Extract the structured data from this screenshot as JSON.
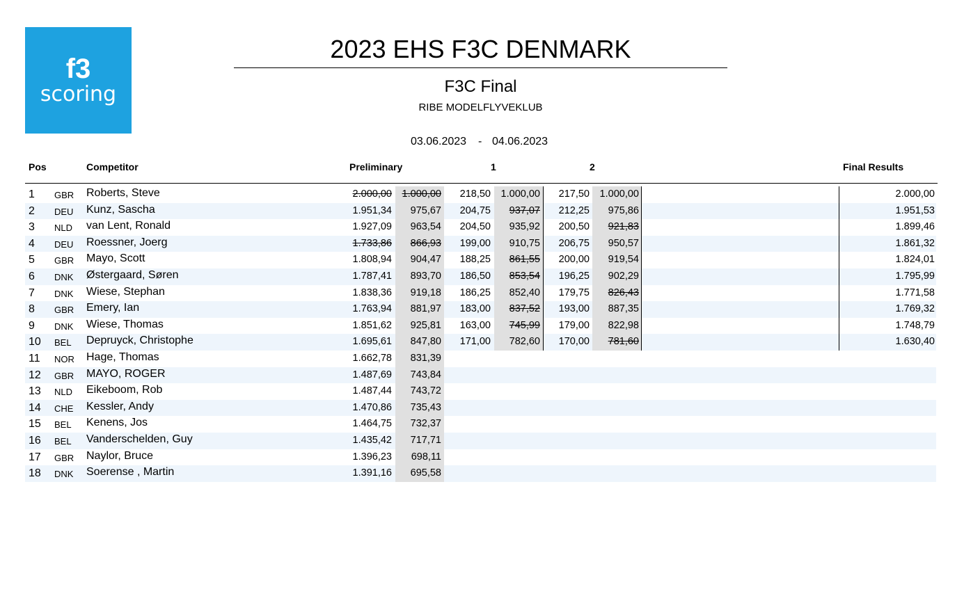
{
  "logo": {
    "top": "f3",
    "bottom": "scoring"
  },
  "header": {
    "title": "2023 EHS F3C DENMARK",
    "subtitle": "F3C Final",
    "club": "RIBE MODELFLYVEKLUB",
    "date_from": "03.06.2023",
    "date_sep": "-",
    "date_to": "04.06.2023"
  },
  "table": {
    "columns": {
      "pos": "Pos",
      "competitor": "Competitor",
      "preliminary": "Preliminary",
      "round1": "1",
      "round2": "2",
      "final": "Final Results"
    },
    "rows": [
      {
        "pos": "1",
        "country": "GBR",
        "name": "Roberts, Steve",
        "preliminary": [
          {
            "text": "2.000,00",
            "struck": true
          },
          {
            "text": "1.000,00",
            "struck": true
          }
        ],
        "round1": [
          "218,50",
          "1.000,00"
        ],
        "round2": [
          "217,50",
          "1.000,00"
        ],
        "final": "2.000,00"
      },
      {
        "pos": "2",
        "country": "DEU",
        "name": "Kunz, Sascha",
        "preliminary": [
          "1.951,34",
          "975,67"
        ],
        "round1": [
          "204,75",
          {
            "text": "937,07",
            "struck": true
          }
        ],
        "round2": [
          "212,25",
          "975,86"
        ],
        "final": "1.951,53"
      },
      {
        "pos": "3",
        "country": "NLD",
        "name": "van Lent, Ronald",
        "preliminary": [
          "1.927,09",
          "963,54"
        ],
        "round1": [
          "204,50",
          "935,92"
        ],
        "round2": [
          "200,50",
          {
            "text": "921,83",
            "struck": true
          }
        ],
        "final": "1.899,46"
      },
      {
        "pos": "4",
        "country": "DEU",
        "name": "Roessner, Joerg",
        "preliminary": [
          {
            "text": "1.733,86",
            "struck": true
          },
          {
            "text": "866,93",
            "struck": true
          }
        ],
        "round1": [
          "199,00",
          "910,75"
        ],
        "round2": [
          "206,75",
          "950,57"
        ],
        "final": "1.861,32"
      },
      {
        "pos": "5",
        "country": "GBR",
        "name": "Mayo, Scott",
        "preliminary": [
          "1.808,94",
          "904,47"
        ],
        "round1": [
          "188,25",
          {
            "text": "861,55",
            "struck": true
          }
        ],
        "round2": [
          "200,00",
          "919,54"
        ],
        "final": "1.824,01"
      },
      {
        "pos": "6",
        "country": "DNK",
        "name": "Østergaard, Søren",
        "preliminary": [
          "1.787,41",
          "893,70"
        ],
        "round1": [
          "186,50",
          {
            "text": "853,54",
            "struck": true
          }
        ],
        "round2": [
          "196,25",
          "902,29"
        ],
        "final": "1.795,99"
      },
      {
        "pos": "7",
        "country": "DNK",
        "name": "Wiese, Stephan",
        "preliminary": [
          "1.838,36",
          "919,18"
        ],
        "round1": [
          "186,25",
          "852,40"
        ],
        "round2": [
          "179,75",
          {
            "text": "826,43",
            "struck": true
          }
        ],
        "final": "1.771,58"
      },
      {
        "pos": "8",
        "country": "GBR",
        "name": "Emery, Ian",
        "preliminary": [
          "1.763,94",
          "881,97"
        ],
        "round1": [
          "183,00",
          {
            "text": "837,52",
            "struck": true
          }
        ],
        "round2": [
          "193,00",
          "887,35"
        ],
        "final": "1.769,32"
      },
      {
        "pos": "9",
        "country": "DNK",
        "name": "Wiese, Thomas",
        "preliminary": [
          "1.851,62",
          "925,81"
        ],
        "round1": [
          "163,00",
          {
            "text": "745,99",
            "struck": true
          }
        ],
        "round2": [
          "179,00",
          "822,98"
        ],
        "final": "1.748,79"
      },
      {
        "pos": "10",
        "country": "BEL",
        "name": "Depruyck, Christophe",
        "preliminary": [
          "1.695,61",
          "847,80"
        ],
        "round1": [
          "171,00",
          "782,60"
        ],
        "round2": [
          "170,00",
          {
            "text": "781,60",
            "struck": true
          }
        ],
        "final": "1.630,40"
      },
      {
        "pos": "11",
        "country": "NOR",
        "name": "Hage, Thomas",
        "preliminary": [
          "1.662,78",
          "831,39"
        ]
      },
      {
        "pos": "12",
        "country": "GBR",
        "name": "MAYO, ROGER",
        "preliminary": [
          "1.487,69",
          "743,84"
        ]
      },
      {
        "pos": "13",
        "country": "NLD",
        "name": "Eikeboom, Rob",
        "preliminary": [
          "1.487,44",
          "743,72"
        ]
      },
      {
        "pos": "14",
        "country": "CHE",
        "name": "Kessler, Andy",
        "preliminary": [
          "1.470,86",
          "735,43"
        ]
      },
      {
        "pos": "15",
        "country": "BEL",
        "name": "Kenens, Jos",
        "preliminary": [
          "1.464,75",
          "732,37"
        ]
      },
      {
        "pos": "16",
        "country": "BEL",
        "name": "Vanderschelden, Guy",
        "preliminary": [
          "1.435,42",
          "717,71"
        ]
      },
      {
        "pos": "17",
        "country": "GBR",
        "name": "Naylor, Bruce",
        "preliminary": [
          "1.396,23",
          "698,11"
        ]
      },
      {
        "pos": "18",
        "country": "DNK",
        "name": "Soerense , Martin",
        "preliminary": [
          "1.391,16",
          "695,58"
        ]
      }
    ]
  }
}
